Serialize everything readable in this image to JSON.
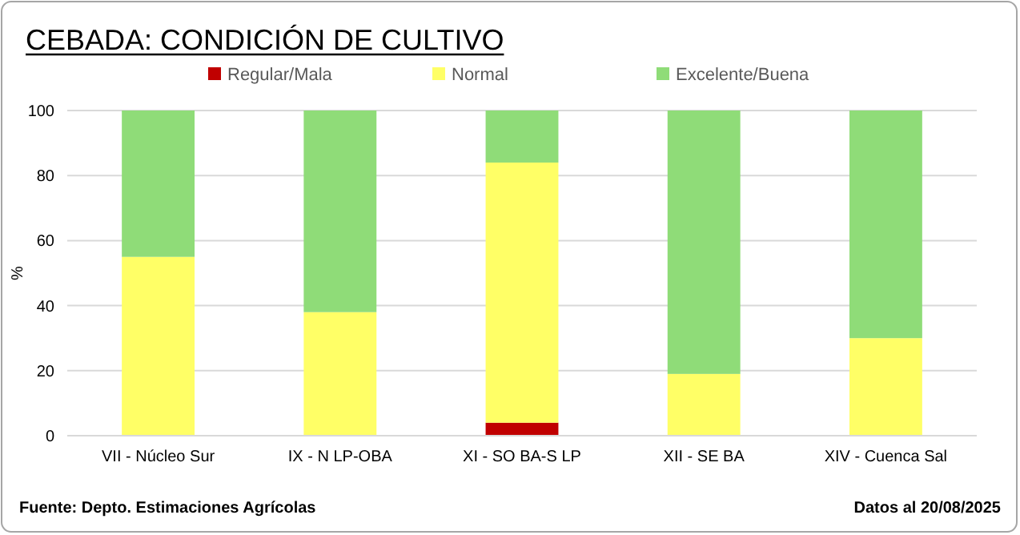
{
  "chart_data": {
    "type": "bar",
    "title": "CEBADA: CONDICIÓN DE CULTIVO",
    "ylabel": "%",
    "categories": [
      "VII - Núcleo Sur",
      "IX - N LP-OBA",
      "XI - SO BA-S LP",
      "XII - SE BA",
      "XIV - Cuenca Sal"
    ],
    "series": [
      {
        "name": "Regular/Mala",
        "color": "#c00000",
        "values": [
          0,
          0,
          4,
          0,
          0
        ]
      },
      {
        "name": "Normal",
        "color": "#ffff66",
        "values": [
          55,
          38,
          80,
          19,
          30
        ]
      },
      {
        "name": "Excelente/Buena",
        "color": "#8fdc78",
        "values": [
          45,
          62,
          16,
          81,
          70
        ]
      }
    ],
    "stacked": true,
    "ylim": [
      0,
      100
    ],
    "yticks": [
      0,
      20,
      40,
      60,
      80,
      100
    ],
    "grid": "y",
    "legend": "top",
    "annotations": [
      "Fuente: Depto. Estimaciones Agrícolas",
      "Datos al 20/08/2025"
    ]
  }
}
